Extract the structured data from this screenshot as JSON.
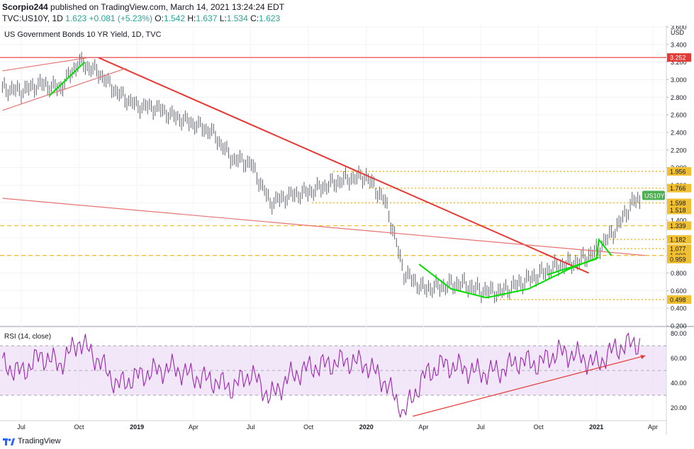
{
  "header": {
    "author": "Scorpio244",
    "published_text": "published on TradingView.com, March 14, 2021 13:24:24 EDT",
    "symbol": "TVC:US10Y, 1D",
    "last": "1.623",
    "change": "+0.081 (+5.23%)",
    "o_label": "O:",
    "o_value": "1.542",
    "h_label": "H:",
    "h_value": "1.637",
    "l_label": "L:",
    "l_value": "1.534",
    "c_label": "C:",
    "c_value": "1.623"
  },
  "footer": {
    "brand": "TradingView"
  },
  "colors": {
    "up": "#26a69a",
    "trend_red": "#e53935",
    "channel_red": "#e57373",
    "green_pattern": "#00e000",
    "level_gold": "#f0c030",
    "rsi_purple": "#9c27b0",
    "rsi_band": "#e9d5f5",
    "last_price_green": "#4caf50"
  },
  "chart_data": [
    {
      "type": "line",
      "title": "US Government Bonds 10 YR Yield, 1D, TVC",
      "currency": "USD",
      "ylim": [
        0.2,
        3.6
      ],
      "y_ticks": [
        "3.600",
        "3.400",
        "3.200",
        "3.000",
        "2.800",
        "2.600",
        "2.400",
        "2.200",
        "2.000",
        "1.800",
        "1.600",
        "1.400",
        "1.200",
        "1.000",
        "0.800",
        "0.600",
        "0.400",
        "0.200"
      ],
      "x_ticks": [
        "Jul",
        "Oct",
        "2019",
        "Apr",
        "Jul",
        "Oct",
        "2020",
        "Apr",
        "Jul",
        "Oct",
        "2021",
        "Apr"
      ],
      "x": [
        "2018-06-01",
        "2018-07-01",
        "2018-08-01",
        "2018-09-01",
        "2018-10-01",
        "2018-11-01",
        "2018-12-01",
        "2019-01-01",
        "2019-02-01",
        "2019-03-01",
        "2019-04-01",
        "2019-05-01",
        "2019-06-01",
        "2019-07-01",
        "2019-08-01",
        "2019-09-01",
        "2019-10-01",
        "2019-11-01",
        "2019-12-01",
        "2020-01-01",
        "2020-02-01",
        "2020-03-01",
        "2020-04-01",
        "2020-05-01",
        "2020-06-01",
        "2020-07-01",
        "2020-08-01",
        "2020-09-01",
        "2020-10-01",
        "2020-11-01",
        "2020-12-01",
        "2021-01-01",
        "2021-02-01",
        "2021-03-01"
      ],
      "series": [
        {
          "values": [
            2.9,
            2.87,
            2.95,
            2.9,
            3.2,
            3.08,
            2.85,
            2.7,
            2.68,
            2.58,
            2.5,
            2.4,
            2.1,
            2.05,
            1.6,
            1.68,
            1.72,
            1.8,
            1.87,
            1.9,
            1.6,
            0.8,
            0.62,
            0.65,
            0.68,
            0.6,
            0.58,
            0.68,
            0.78,
            0.88,
            0.92,
            1.05,
            1.3,
            1.62
          ]
        }
      ],
      "horizontal_levels": [
        {
          "label": "3.252",
          "value": 3.252,
          "style": "solid-red"
        },
        {
          "label": "1.956",
          "value": 1.956,
          "style": "dotted-gold"
        },
        {
          "label": "1.766",
          "value": 1.766,
          "style": "dotted-gold"
        },
        {
          "label": "1.598",
          "value": 1.598,
          "style": "dotted-gold"
        },
        {
          "label": "1.518",
          "value": 1.518,
          "style": "none"
        },
        {
          "label": "1.339",
          "value": 1.339,
          "style": "dashed-gold"
        },
        {
          "label": "1.182",
          "value": 1.182,
          "style": "dotted-gold"
        },
        {
          "label": "1.077",
          "value": 1.077,
          "style": "dotted-gold"
        },
        {
          "label": "1.000",
          "value": 1.0,
          "style": "dashed-gold"
        },
        {
          "label": "0.959",
          "value": 0.959,
          "style": "none"
        },
        {
          "label": "0.498",
          "value": 0.498,
          "style": "dotted-gold"
        }
      ],
      "last_price_label": "US10Y",
      "last_price_value": 1.623,
      "trend_lines": [
        {
          "from": [
            "2018-11-01",
            3.25
          ],
          "to": [
            "2020-12-20",
            0.8
          ],
          "color": "trend_red"
        },
        {
          "from": [
            "2018-06-01",
            3.1
          ],
          "to": [
            "2018-10-15",
            3.25
          ],
          "color": "channel_red"
        },
        {
          "from": [
            "2018-06-01",
            2.65
          ],
          "to": [
            "2018-12-15",
            3.13
          ],
          "color": "channel_red"
        },
        {
          "from": [
            "2018-06-01",
            1.65
          ],
          "to": [
            "2021-03-20",
            1.0
          ],
          "color": "channel_red"
        }
      ],
      "green_patterns": [
        {
          "points": [
            [
              "2018-08-15",
              2.82
            ],
            [
              "2018-10-10",
              3.2
            ]
          ]
        },
        {
          "points": [
            [
              "2020-03-25",
              0.9
            ],
            [
              "2020-05-15",
              0.62
            ],
            [
              "2020-07-10",
              0.52
            ],
            [
              "2020-09-15",
              0.62
            ],
            [
              "2020-11-20",
              0.85
            ],
            [
              "2021-01-05",
              0.98
            ]
          ]
        },
        {
          "points": [
            [
              "2020-10-15",
              0.78
            ],
            [
              "2021-01-01",
              0.96
            ],
            [
              "2021-01-05",
              1.18
            ],
            [
              "2021-01-25",
              1.0
            ]
          ]
        }
      ]
    },
    {
      "type": "line",
      "title": "RSI (14, close)",
      "ylim": [
        10,
        85
      ],
      "y_ticks": [
        "80.00",
        "60.00",
        "40.00",
        "20.00"
      ],
      "band": [
        30,
        70
      ],
      "series": [
        {
          "values": [
            55,
            48,
            62,
            55,
            74,
            58,
            38,
            45,
            50,
            52,
            45,
            42,
            36,
            48,
            28,
            45,
            52,
            55,
            58,
            55,
            40,
            15,
            45,
            55,
            52,
            48,
            50,
            58,
            55,
            65,
            62,
            55,
            68,
            72
          ]
        }
      ],
      "trend_lines": [
        {
          "from": [
            "2020-03-15",
            13
          ],
          "to": [
            "2021-03-20",
            62
          ],
          "color": "channel_red"
        }
      ]
    }
  ]
}
